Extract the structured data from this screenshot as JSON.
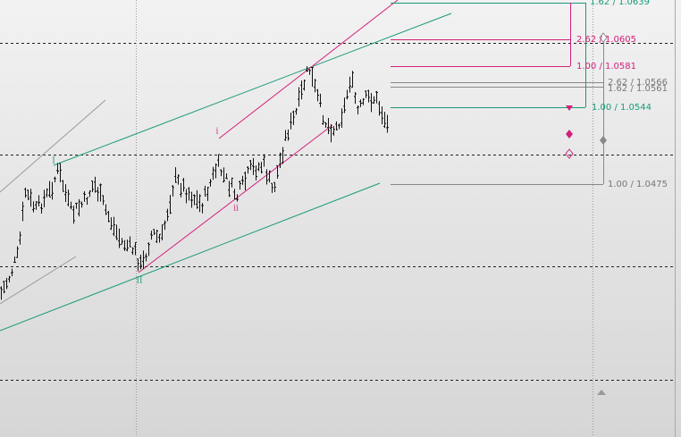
{
  "levels": [
    "1.62 / 1.0639",
    "2.62 / 1.0605",
    "1.00 / 1.0581",
    "2.62 / 1.0566",
    "1.62 / 1.0561",
    "1.00 / 1.0544",
    "1.00 / 1.0475"
  ],
  "wave_labels": [
    "i",
    "ii",
    "I",
    "II"
  ]
}
